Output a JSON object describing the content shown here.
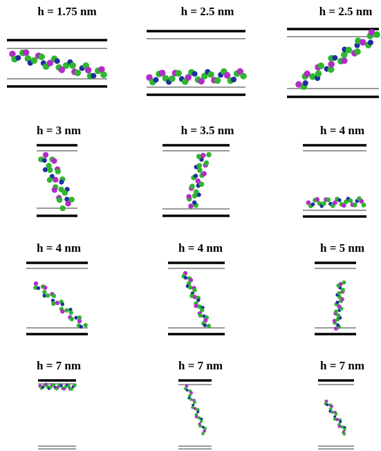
{
  "panels": [
    {
      "label": "h = 1.75 nm"
    },
    {
      "label": "h = 2.5 nm"
    },
    {
      "label": "h = 2.5 nm"
    },
    {
      "label": "h = 3 nm"
    },
    {
      "label": "h = 3.5 nm"
    },
    {
      "label": "h = 4 nm"
    },
    {
      "label": "h = 4 nm"
    },
    {
      "label": "h = 4 nm"
    },
    {
      "label": "h = 5 nm"
    },
    {
      "label": "h = 7 nm"
    },
    {
      "label": "h = 7 nm"
    },
    {
      "label": "h = 7 nm"
    }
  ]
}
